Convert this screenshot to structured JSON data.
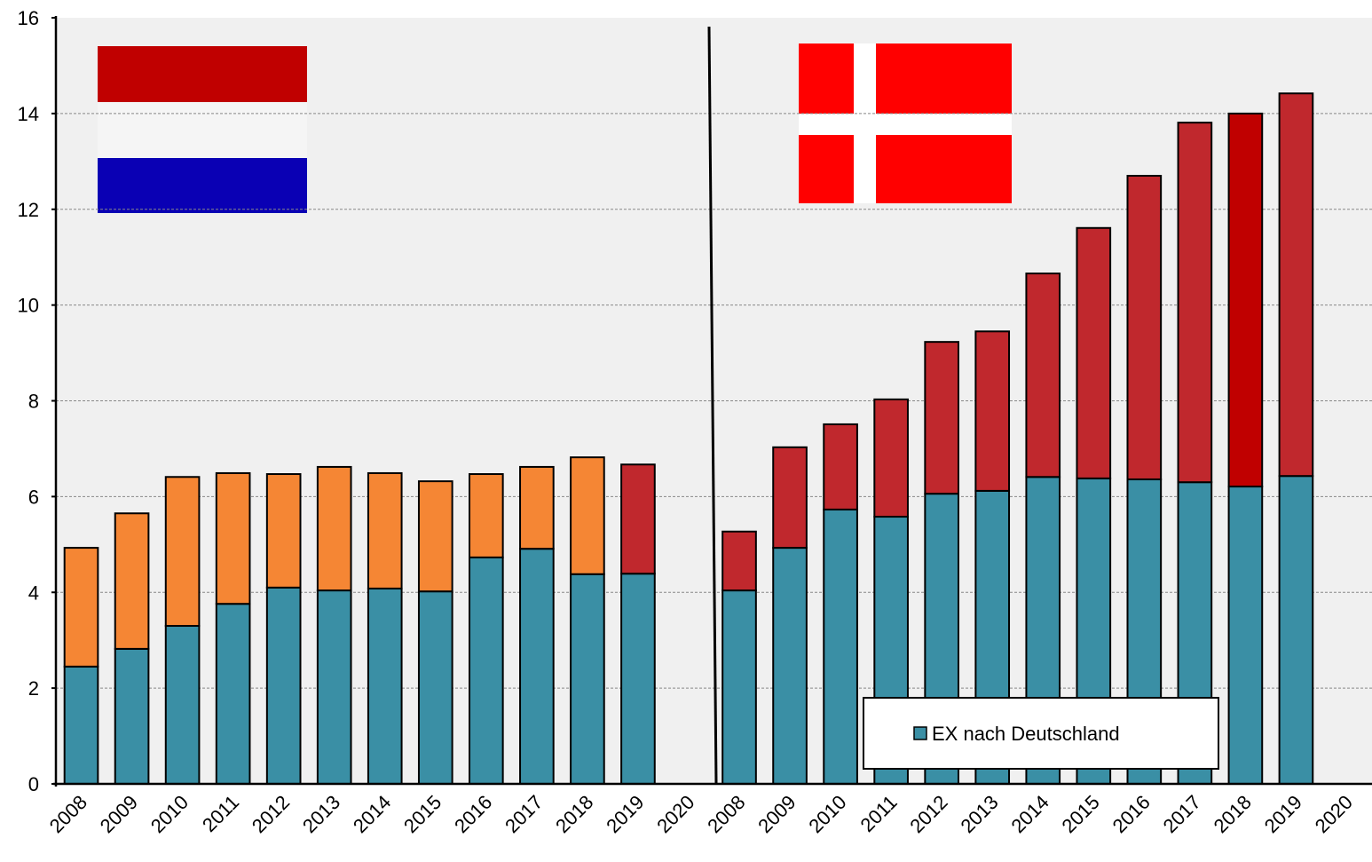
{
  "chart_data": {
    "type": "stacked_bar",
    "categories": [
      "2008",
      "2009",
      "2010",
      "2011",
      "2012",
      "2013",
      "2014",
      "2015",
      "2016",
      "2017",
      "2018",
      "2019",
      "2020",
      "2008",
      "2009",
      "2010",
      "2011",
      "2012",
      "2013",
      "2014",
      "2015",
      "2016",
      "2017",
      "2018",
      "2019",
      "2020"
    ],
    "series": [
      {
        "name": "EX nach Deutschland",
        "color": "#3a8fa5",
        "values": [
          2.45,
          2.82,
          3.3,
          3.76,
          4.1,
          4.04,
          4.08,
          4.02,
          4.73,
          4.91,
          4.38,
          4.39,
          null,
          4.04,
          4.93,
          5.73,
          5.58,
          6.06,
          6.12,
          6.41,
          6.38,
          6.36,
          6.3,
          6.21,
          6.43,
          null
        ]
      },
      {
        "colors": [
          "#f58634",
          "#f58634",
          "#f58634",
          "#f58634",
          "#f58634",
          "#f58634",
          "#f58634",
          "#f58634",
          "#f58634",
          "#f58634",
          "#f58634",
          "#c0282d",
          null,
          "#c0282d",
          "#c0282d",
          "#c0282d",
          "#c0282d",
          "#c0282d",
          "#c0282d",
          "#c0282d",
          "#c0282d",
          "#c0282d",
          "#c0282d",
          "#c00000",
          "#c0282d",
          null
        ],
        "values": [
          2.48,
          2.83,
          3.11,
          2.73,
          2.37,
          2.58,
          2.41,
          2.3,
          1.74,
          1.71,
          2.44,
          2.28,
          null,
          1.23,
          2.1,
          1.78,
          2.45,
          3.17,
          3.33,
          4.25,
          5.23,
          6.34,
          7.51,
          7.79,
          7.99,
          null
        ]
      }
    ],
    "ylim": [
      0,
      16
    ],
    "yticks": [
      0,
      2,
      4,
      6,
      8,
      10,
      12,
      14,
      16
    ],
    "grid": true,
    "legend": "lower right"
  }
}
